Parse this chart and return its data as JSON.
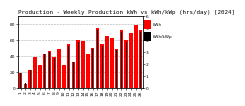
{
  "title": "Production - Weekly Production kWh vs kWh/kWp (hrs/day) [2024]",
  "weeks": [
    "1",
    "2",
    "3",
    "4",
    "5",
    "6",
    "7",
    "8",
    "9",
    "10",
    "11",
    "12",
    "13",
    "14",
    "15",
    "16",
    "17",
    "18",
    "19",
    "20",
    "21",
    "22",
    "23",
    "24",
    "25",
    "26"
  ],
  "production_kwh": [
    18,
    5,
    22,
    38,
    28,
    42,
    46,
    38,
    48,
    28,
    55,
    32,
    60,
    58,
    42,
    50,
    75,
    55,
    65,
    62,
    48,
    72,
    60,
    68,
    78,
    72
  ],
  "efficiency": [
    1.2,
    0.4,
    1.5,
    2.5,
    1.9,
    2.8,
    3.0,
    2.5,
    3.1,
    1.8,
    3.5,
    2.1,
    3.8,
    3.7,
    2.7,
    3.2,
    4.8,
    3.5,
    4.1,
    3.9,
    3.1,
    4.6,
    3.8,
    4.3,
    5.0,
    4.6
  ],
  "bar_color": "#ff0000",
  "eff_color": "#000000",
  "bg_color": "#ffffff",
  "grid_color": "#aaaaaa",
  "legend_kwh": "kWh",
  "legend_eff": "kWh/kWp",
  "ylim_left": [
    0,
    90
  ],
  "ylim_right": [
    0,
    6
  ],
  "yticks_left": [
    0,
    20,
    40,
    60,
    80
  ],
  "yticks_right": [
    0,
    1,
    2,
    3,
    4,
    5,
    6
  ],
  "title_fontsize": 4.2,
  "tick_fontsize": 3.2,
  "legend_fontsize": 3.0
}
